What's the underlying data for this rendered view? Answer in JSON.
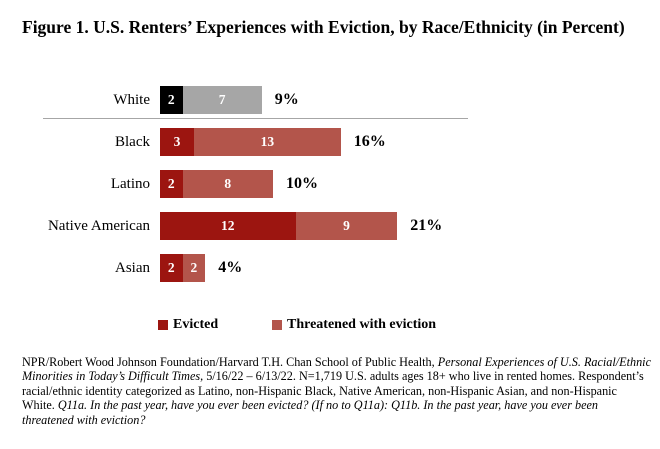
{
  "chart_data": {
    "type": "bar",
    "orientation": "horizontal_stacked",
    "title": "Figure 1. U.S. Renters’ Experiences with Eviction, by Race/Ethnicity (in Percent)",
    "categories": [
      "White",
      "Black",
      "Latino",
      "Native American",
      "Asian"
    ],
    "series": [
      {
        "name": "Evicted",
        "values": [
          2,
          3,
          2,
          12,
          2
        ]
      },
      {
        "name": "Threatened with eviction",
        "values": [
          7,
          13,
          8,
          9,
          2
        ]
      }
    ],
    "totals": [
      "9%",
      "16%",
      "10%",
      "21%",
      "4%"
    ],
    "xlim": [
      0,
      24
    ],
    "grid": false,
    "legend_position": "bottom",
    "series_colors": [
      "#9C1510",
      "#B3554B"
    ],
    "white_row_colors": [
      "#000000",
      "#A6A6A6"
    ],
    "bar_value_text_color": "#FFFFFF",
    "separator_line_color": "#A6A6A6",
    "separator_after_category": "White"
  },
  "footnote": {
    "segments": [
      {
        "text": "NPR/Robert Wood Johnson Foundation/Harvard T.H. Chan School of Public Health, ",
        "italic": false
      },
      {
        "text": "Personal Experiences of U.S. Racial/Ethnic Minorities in Today’s Difficult Times,",
        "italic": true
      },
      {
        "text": " 5/16/22 – 6/13/22. N=1,719 U.S. adults ages 18+ who live in rented homes. Respondent’s racial/ethnic identity categorized as Latino, non-Hispanic Black, Native American, non-Hispanic Asian, and non-Hispanic White. ",
        "italic": false
      },
      {
        "text": "Q11a. In the past year, have you ever been evicted? (If no to Q11a): Q11b. In the past year, have you ever been threatened with eviction?",
        "italic": true
      }
    ]
  }
}
